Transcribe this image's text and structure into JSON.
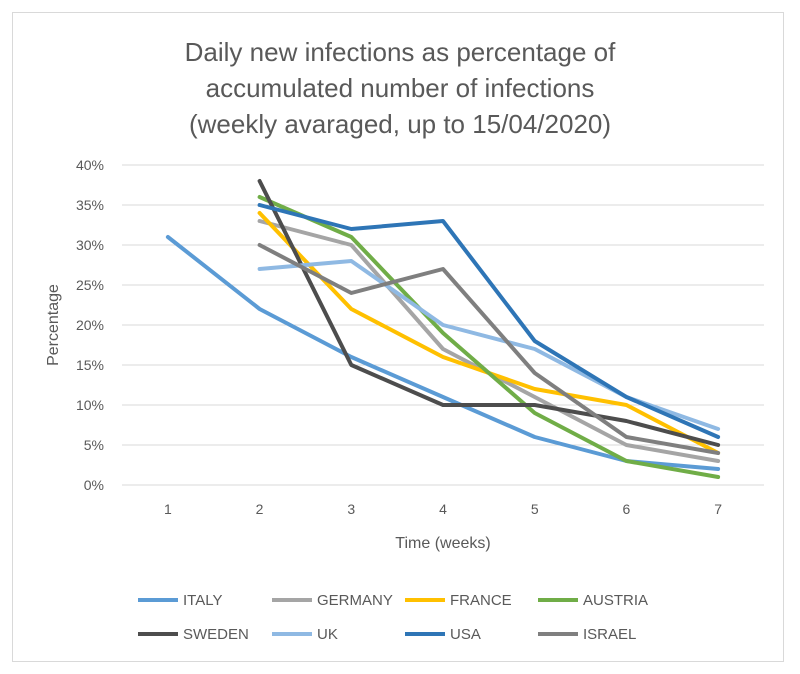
{
  "chart_data": {
    "type": "line",
    "title_lines": [
      "Daily new infections as percentage of",
      "accumulated number of infections",
      "(weekly avaraged, up to 15/04/2020)"
    ],
    "xlabel": "Time (weeks)",
    "ylabel": "Percentage",
    "categories": [
      "1",
      "2",
      "3",
      "4",
      "5",
      "6",
      "7"
    ],
    "yticks": [
      "0%",
      "5%",
      "10%",
      "15%",
      "20%",
      "25%",
      "30%",
      "35%",
      "40%"
    ],
    "ylim": [
      0,
      40
    ],
    "grid": true,
    "legend_position": "bottom",
    "series": [
      {
        "name": "ITALY",
        "color": "#5b9bd5",
        "values": [
          31,
          22,
          16,
          11,
          6,
          3,
          2
        ]
      },
      {
        "name": "GERMANY",
        "color": "#a5a5a5",
        "values": [
          null,
          33,
          30,
          17,
          11,
          5,
          3
        ]
      },
      {
        "name": "FRANCE",
        "color": "#ffc000",
        "values": [
          null,
          34,
          22,
          16,
          12,
          10,
          4
        ]
      },
      {
        "name": "AUSTRIA",
        "color": "#70ad47",
        "values": [
          null,
          36,
          31,
          19,
          9,
          3,
          1
        ]
      },
      {
        "name": "SWEDEN",
        "color": "#4d4d4d",
        "values": [
          null,
          38,
          15,
          10,
          10,
          8,
          5
        ]
      },
      {
        "name": "UK",
        "color": "#8fb9e3",
        "values": [
          null,
          27,
          28,
          20,
          17,
          11,
          7
        ]
      },
      {
        "name": "USA",
        "color": "#2e75b6",
        "values": [
          null,
          35,
          32,
          33,
          18,
          11,
          6
        ]
      },
      {
        "name": "ISRAEL",
        "color": "#7f7f7f",
        "values": [
          null,
          30,
          24,
          27,
          14,
          6,
          4
        ]
      }
    ]
  }
}
